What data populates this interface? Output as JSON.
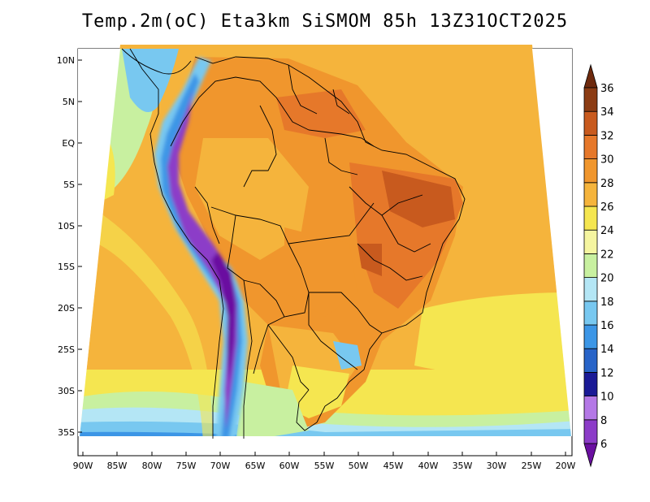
{
  "title": "Temp.2m(oC) Eta3km SiSMOM 85h 13Z31OCT2025",
  "map": {
    "variable": "Temp.2m(oC)",
    "model": "Eta3km",
    "run": "SiSMOM",
    "forecast_hour": "85h",
    "valid_time": "13Z31OCT2025",
    "region": "South America / Brazil"
  },
  "axes": {
    "lat_labels": [
      "10N",
      "5N",
      "EQ",
      "5S",
      "10S",
      "15S",
      "20S",
      "25S",
      "30S",
      "35S"
    ],
    "lon_labels": [
      "90W",
      "85W",
      "80W",
      "75W",
      "70W",
      "65W",
      "60W",
      "55W",
      "50W",
      "45W",
      "40W",
      "35W",
      "30W",
      "25W",
      "20W"
    ]
  },
  "colorbar": {
    "labels": [
      "6",
      "8",
      "10",
      "12",
      "14",
      "16",
      "18",
      "20",
      "22",
      "24",
      "26",
      "28",
      "30",
      "32",
      "34",
      "36"
    ],
    "colors": [
      "#6a0fa0",
      "#8c3cc8",
      "#b478e6",
      "#1a1a96",
      "#2864c8",
      "#3c96e6",
      "#78c8f0",
      "#b4e6f5",
      "#c8f0a0",
      "#f5f5a0",
      "#f5e650",
      "#f5b43c",
      "#f0962d",
      "#e6782a",
      "#c85a1e",
      "#8c3c14",
      "#6e2a0e"
    ]
  }
}
